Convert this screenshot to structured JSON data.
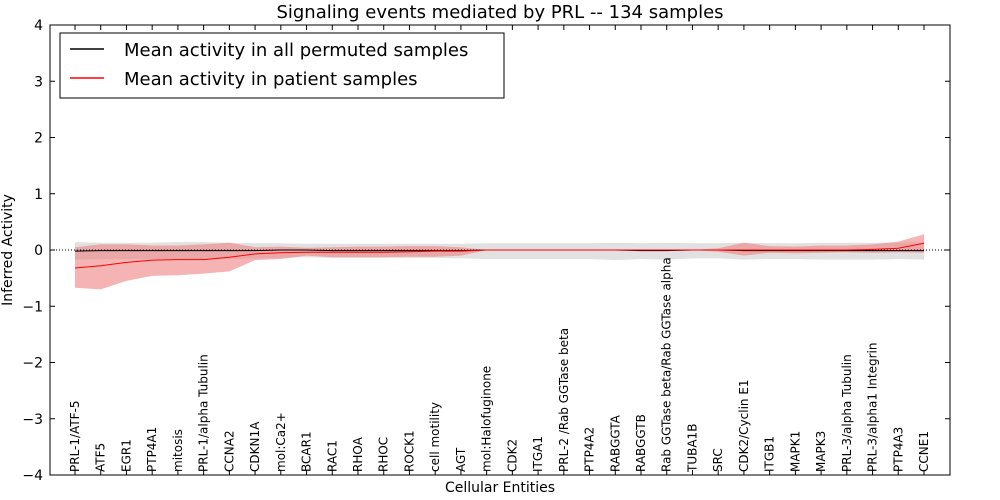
{
  "chart_data": {
    "type": "line",
    "title": "Signaling events mediated by PRL -- 134 samples",
    "xlabel": "Cellular Entities",
    "ylabel": "Inferred Activity",
    "ylim": [
      -4,
      4
    ],
    "yticks": [
      -4,
      -3,
      -2,
      -1,
      0,
      1,
      2,
      3,
      4
    ],
    "ytick_labels": [
      "−4",
      "−3",
      "−2",
      "−1",
      "0",
      "1",
      "2",
      "3",
      "4"
    ],
    "legend_position": "top-left",
    "categories": [
      "PRL-1/ATF-5",
      "ATF5",
      "EGR1",
      "PTP4A1",
      "mitosis",
      "PRL-1/alpha Tubulin",
      "CCNA2",
      "CDKN1A",
      "mol:Ca2+",
      "BCAR1",
      "RAC1",
      "RHOA",
      "RHOC",
      "ROCK1",
      "cell motility",
      "AGT",
      "mol:Halofuginone",
      "CDK2",
      "ITGA1",
      "PRL-2 /Rab GGTase beta",
      "PTP4A2",
      "RABGGTA",
      "RABGGTB",
      "Rab GGTase beta/Rab GGTase alpha",
      "TUBA1B",
      "SRC",
      "CDK2/Cyclin E1",
      "ITGB1",
      "MAPK1",
      "MAPK3",
      "PRL-3/alpha Tubulin",
      "PRL-3/alpha1 Integrin",
      "PTP4A3",
      "CCNE1"
    ],
    "series": [
      {
        "name": "Mean activity in all permuted samples",
        "color": "#000000",
        "values": [
          -0.02,
          -0.01,
          -0.01,
          -0.01,
          -0.01,
          -0.01,
          -0.01,
          -0.01,
          0.0,
          0.0,
          -0.01,
          -0.01,
          -0.01,
          -0.01,
          -0.01,
          -0.01,
          0.0,
          0.0,
          0.0,
          0.0,
          0.0,
          0.0,
          -0.01,
          -0.01,
          0.0,
          0.0,
          -0.01,
          -0.01,
          -0.01,
          -0.01,
          -0.01,
          -0.01,
          -0.01,
          -0.01
        ],
        "lower": [
          -0.17,
          -0.16,
          -0.16,
          -0.16,
          -0.16,
          -0.16,
          -0.16,
          -0.15,
          -0.14,
          -0.13,
          -0.14,
          -0.14,
          -0.14,
          -0.14,
          -0.14,
          -0.15,
          -0.16,
          -0.16,
          -0.16,
          -0.16,
          -0.16,
          -0.18,
          -0.16,
          -0.17,
          -0.15,
          -0.15,
          -0.17,
          -0.16,
          -0.16,
          -0.17,
          -0.17,
          -0.17,
          -0.16,
          -0.17
        ],
        "upper": [
          0.14,
          0.13,
          0.13,
          0.13,
          0.14,
          0.14,
          0.13,
          0.12,
          0.12,
          0.11,
          0.11,
          0.11,
          0.11,
          0.11,
          0.11,
          0.11,
          0.12,
          0.12,
          0.12,
          0.12,
          0.12,
          0.13,
          0.12,
          0.13,
          0.12,
          0.12,
          0.13,
          0.12,
          0.12,
          0.13,
          0.13,
          0.13,
          0.13,
          0.14
        ]
      },
      {
        "name": "Mean activity in patient samples",
        "color": "#ff0000",
        "band_color": "#f08080",
        "values": [
          -0.32,
          -0.28,
          -0.22,
          -0.18,
          -0.17,
          -0.17,
          -0.13,
          -0.07,
          -0.05,
          -0.04,
          -0.04,
          -0.04,
          -0.04,
          -0.03,
          -0.02,
          -0.02,
          0.0,
          0.0,
          0.0,
          0.0,
          0.0,
          0.0,
          0.0,
          0.0,
          0.0,
          0.0,
          0.0,
          0.0,
          0.0,
          0.0,
          0.0,
          0.01,
          0.03,
          0.12
        ],
        "lower": [
          -0.67,
          -0.7,
          -0.55,
          -0.46,
          -0.45,
          -0.42,
          -0.38,
          -0.18,
          -0.16,
          -0.1,
          -0.13,
          -0.13,
          -0.13,
          -0.12,
          -0.12,
          -0.1,
          0.0,
          0.0,
          0.0,
          0.0,
          0.0,
          0.0,
          0.0,
          0.0,
          0.0,
          -0.03,
          -0.1,
          -0.05,
          -0.06,
          -0.05,
          -0.04,
          -0.05,
          -0.04,
          -0.05
        ],
        "upper": [
          0.05,
          0.1,
          0.1,
          0.08,
          0.08,
          0.1,
          0.13,
          0.05,
          0.06,
          0.04,
          0.05,
          0.06,
          0.06,
          0.07,
          0.07,
          0.05,
          0.0,
          0.0,
          0.0,
          0.0,
          0.0,
          0.0,
          0.0,
          0.0,
          0.0,
          0.03,
          0.13,
          0.07,
          0.06,
          0.08,
          0.08,
          0.1,
          0.15,
          0.28
        ]
      }
    ]
  }
}
